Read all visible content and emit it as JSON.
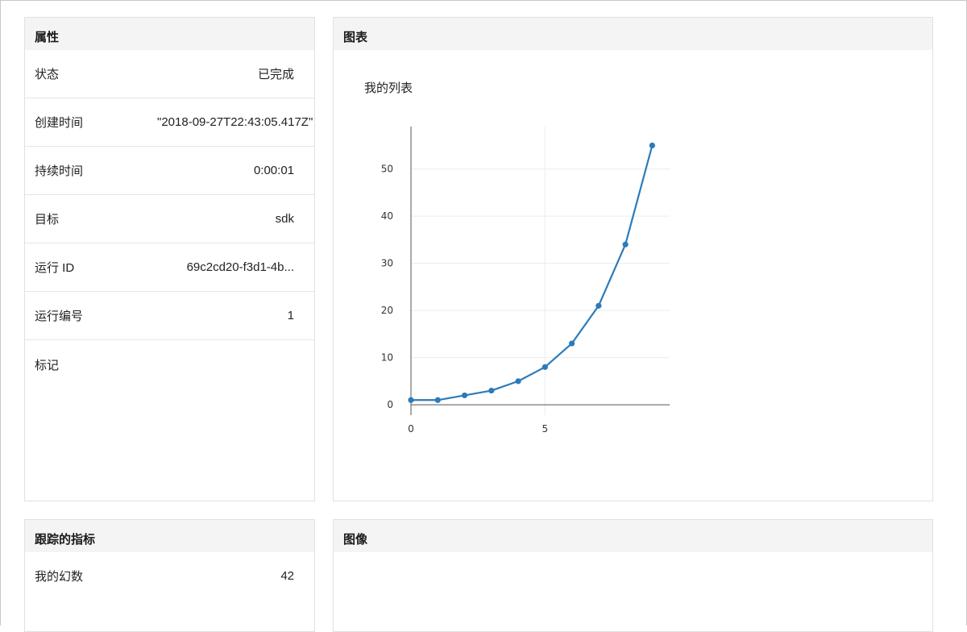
{
  "properties": {
    "title": "属性",
    "rows": [
      {
        "label": "状态",
        "value": "已完成"
      },
      {
        "label": "创建时间",
        "value": "\"2018-09-27T22:43:05.417Z\""
      },
      {
        "label": "持续时间",
        "value": "0:00:01"
      },
      {
        "label": "目标",
        "value": "sdk"
      },
      {
        "label": "运行 ID",
        "value": "69c2cd20-f3d1-4b..."
      },
      {
        "label": "运行编号",
        "value": "1"
      },
      {
        "label": "标记",
        "value": ""
      }
    ]
  },
  "chart_panel": {
    "title": "图表"
  },
  "tracked_metrics": {
    "title": "跟踪的指标",
    "rows": [
      {
        "label": "我的幻数",
        "value": "42"
      }
    ]
  },
  "images_panel": {
    "title": "图像"
  },
  "colors": {
    "line": "#2b7bba",
    "axis": "#555555",
    "grid": "#ececec"
  },
  "chart_data": {
    "type": "line",
    "title": "我的列表",
    "xlabel": "",
    "ylabel": "",
    "x": [
      0,
      1,
      2,
      3,
      4,
      5,
      6,
      7,
      8,
      9
    ],
    "series": [
      {
        "name": "我的列表",
        "values": [
          1,
          1,
          2,
          3,
          5,
          8,
          13,
          21,
          34,
          55
        ]
      }
    ],
    "xlim": [
      0,
      9.65
    ],
    "ylim": [
      -2.2,
      59
    ],
    "xticks": [
      0,
      5
    ],
    "yticks": [
      0,
      10,
      20,
      30,
      40,
      50
    ],
    "grid": true
  }
}
